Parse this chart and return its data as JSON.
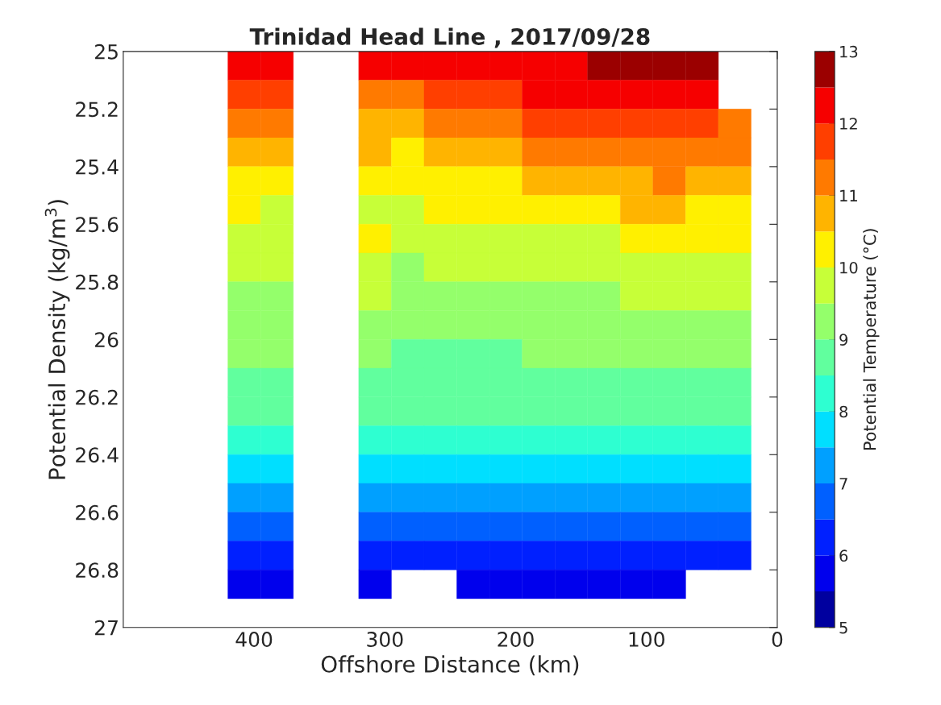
{
  "chart_data": {
    "type": "heatmap",
    "title": "Trinidad Head Line , 2017/09/28",
    "xlabel": "Offshore Distance (km)",
    "ylabel": "Potential Density (kg/m$^{3}$)",
    "clabel": "Potential Temperature (°C)",
    "x": [
      407.5,
      382.5,
      357.5,
      332.5,
      307.5,
      282.5,
      257.5,
      232.5,
      207.5,
      182.5,
      157.5,
      132.5,
      107.5,
      82.5,
      57.5,
      32.5
    ],
    "y": [
      25.05,
      25.15,
      25.25,
      25.35,
      25.45,
      25.55,
      25.65,
      25.75,
      25.85,
      25.95,
      26.05,
      26.15,
      26.25,
      26.35,
      26.45,
      26.55,
      26.65,
      26.75,
      26.85
    ],
    "cells": [
      [
        12.3,
        12.2,
        null,
        null,
        12.2,
        12.1,
        12.2,
        12.3,
        12.4,
        12.3,
        12.4,
        12.5,
        12.7,
        12.6,
        12.5,
        null
      ],
      [
        11.8,
        11.7,
        null,
        null,
        11.4,
        11.4,
        11.6,
        11.7,
        11.8,
        12.0,
        12.0,
        12.1,
        12.2,
        12.2,
        12.1,
        null
      ],
      [
        11.3,
        11.2,
        null,
        null,
        10.9,
        10.8,
        11.2,
        11.2,
        11.3,
        11.6,
        11.6,
        11.6,
        11.9,
        11.8,
        11.6,
        11.3
      ],
      [
        10.9,
        10.8,
        null,
        null,
        10.6,
        10.3,
        10.7,
        10.8,
        10.9,
        11.0,
        11.1,
        11.1,
        11.4,
        11.4,
        11.2,
        11.0
      ],
      [
        10.4,
        10.3,
        null,
        null,
        10.3,
        10.0,
        10.3,
        10.3,
        10.4,
        10.6,
        10.7,
        10.7,
        10.9,
        11.0,
        10.8,
        10.7
      ],
      [
        10.0,
        9.9,
        null,
        null,
        9.9,
        9.8,
        10.0,
        10.0,
        10.1,
        10.2,
        10.3,
        10.3,
        10.5,
        10.6,
        10.4,
        10.3
      ],
      [
        9.8,
        9.7,
        null,
        null,
        10.2,
        9.6,
        9.7,
        9.8,
        9.8,
        9.9,
        9.9,
        9.9,
        10.2,
        10.3,
        10.1,
        10.0
      ],
      [
        9.6,
        9.6,
        null,
        null,
        9.8,
        9.4,
        9.5,
        9.5,
        9.5,
        9.6,
        9.6,
        9.6,
        9.9,
        9.9,
        9.8,
        9.8
      ],
      [
        9.3,
        9.3,
        null,
        null,
        9.6,
        9.2,
        9.3,
        9.3,
        9.3,
        9.4,
        9.4,
        9.4,
        9.6,
        9.6,
        9.5,
        9.5
      ],
      [
        9.2,
        9.2,
        null,
        null,
        9.2,
        9.1,
        9.1,
        9.1,
        9.2,
        9.2,
        9.2,
        9.2,
        9.3,
        9.4,
        9.3,
        9.3
      ],
      [
        9.0,
        9.0,
        null,
        null,
        9.0,
        8.9,
        8.9,
        8.9,
        8.9,
        9.0,
        9.1,
        9.0,
        9.1,
        9.2,
        9.1,
        9.1
      ],
      [
        8.8,
        8.8,
        null,
        null,
        8.8,
        8.8,
        8.7,
        8.7,
        8.8,
        8.8,
        8.8,
        8.8,
        8.8,
        8.9,
        8.9,
        8.9
      ],
      [
        8.6,
        8.6,
        null,
        null,
        8.6,
        8.5,
        8.5,
        8.5,
        8.5,
        8.5,
        8.6,
        8.6,
        8.6,
        8.7,
        8.6,
        8.5
      ],
      [
        8.2,
        8.2,
        null,
        null,
        8.1,
        8.1,
        8.1,
        8.1,
        8.1,
        8.1,
        8.2,
        8.2,
        8.1,
        8.2,
        8.1,
        8.0
      ],
      [
        7.8,
        7.7,
        null,
        null,
        7.6,
        7.6,
        7.7,
        7.7,
        7.7,
        7.7,
        7.8,
        7.8,
        7.7,
        7.8,
        7.7,
        7.5
      ],
      [
        7.3,
        7.3,
        null,
        null,
        7.2,
        7.1,
        7.2,
        7.2,
        7.3,
        7.3,
        7.3,
        7.3,
        7.3,
        7.3,
        7.2,
        7.1
      ],
      [
        6.9,
        6.8,
        null,
        null,
        6.8,
        6.7,
        6.7,
        6.7,
        6.8,
        6.8,
        6.8,
        6.8,
        6.8,
        6.9,
        6.7,
        6.5
      ],
      [
        6.3,
        6.3,
        null,
        null,
        6.3,
        6.2,
        6.2,
        6.2,
        6.3,
        6.3,
        6.3,
        6.3,
        6.3,
        6.3,
        6.2,
        6.1
      ],
      [
        5.8,
        5.8,
        null,
        null,
        5.8,
        null,
        null,
        5.7,
        5.8,
        5.8,
        5.7,
        5.8,
        5.7,
        5.8,
        null,
        null
      ]
    ],
    "colors": [
      "#00009f",
      "#0000ed",
      "#0020ff",
      "#0060ff",
      "#00a0ff",
      "#00dfff",
      "#2effd1",
      "#61ff9e",
      "#94ff6b",
      "#c7ff38",
      "#fff000",
      "#ffb400",
      "#ff7a00",
      "#ff3f00",
      "#f60000",
      "#9b0000"
    ],
    "clim": [
      5,
      13
    ],
    "cticks": [
      5,
      6,
      7,
      8,
      9,
      10,
      11,
      12,
      13
    ],
    "xlim": [
      500,
      0
    ],
    "xticks": [
      400,
      300,
      200,
      100,
      0
    ],
    "ylim": [
      27,
      25
    ],
    "yticks": [
      25,
      25.2,
      25.4,
      25.6,
      25.8,
      26,
      26.2,
      26.4,
      26.6,
      26.8,
      27
    ],
    "grid": false
  }
}
